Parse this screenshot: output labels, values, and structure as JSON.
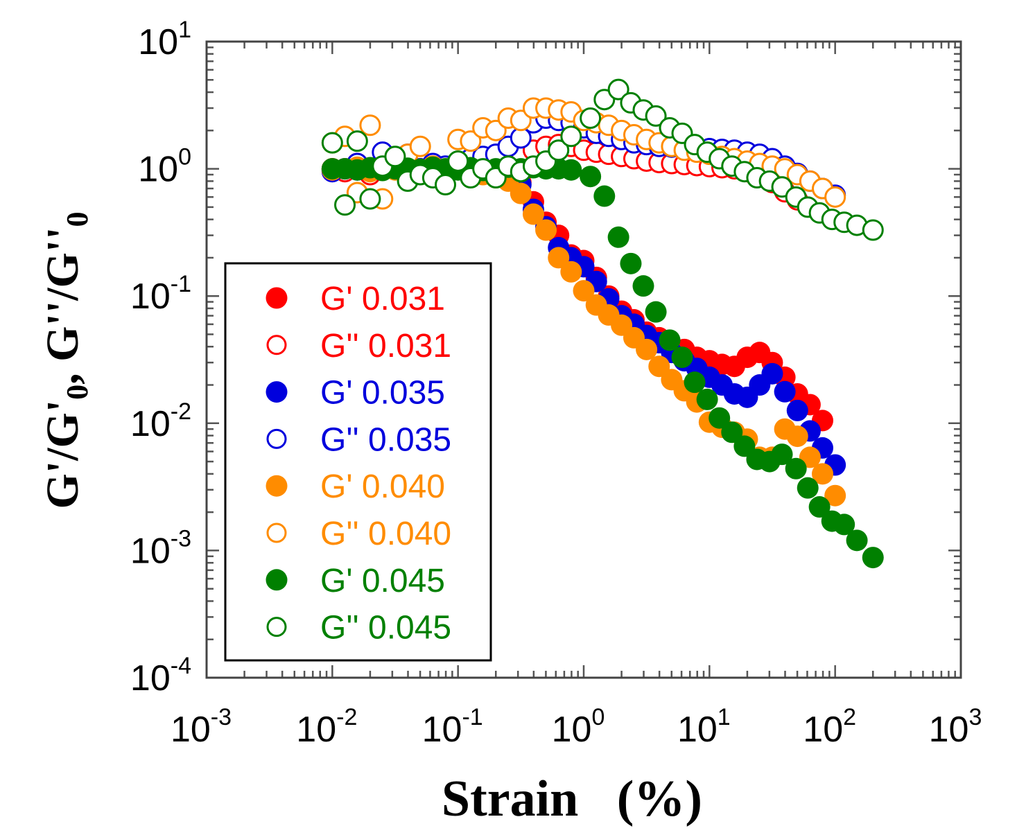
{
  "chart_data": {
    "type": "scatter",
    "xscale": "log",
    "yscale": "log",
    "xlim": [
      0.001,
      1000
    ],
    "ylim": [
      0.0001,
      10
    ],
    "xlabel": "Strain   (%)",
    "ylabel_parts": [
      "G'/G'",
      "0",
      ", G''/G''",
      "0"
    ],
    "tick_base": "10",
    "x_tick_exponents": [
      "-3",
      "-2",
      "-1",
      "0",
      "1",
      "2",
      "3"
    ],
    "y_tick_exponents": [
      "1",
      "0",
      "-1",
      "-2",
      "-3",
      "-4"
    ],
    "legend_placement": "lower-left",
    "grid": false,
    "series": [
      {
        "name": "G' 0.031",
        "color": "#ff0000",
        "filled": true,
        "x": [
          0.01,
          0.0126,
          0.0158,
          0.02,
          0.0251,
          0.0316,
          0.0398,
          0.0501,
          0.0631,
          0.0794,
          0.1,
          0.126,
          0.158,
          0.2,
          0.251,
          0.316,
          0.398,
          0.501,
          0.631,
          0.794,
          1,
          1.26,
          1.58,
          2,
          2.51,
          3.16,
          3.98,
          5.01,
          6.31,
          7.94,
          10,
          12.6,
          15.8,
          20,
          25.1,
          31.6,
          39.8,
          50.1,
          63.1,
          79.4
        ],
        "y": [
          1.0,
          0.98,
          1.02,
          0.97,
          1.0,
          1.01,
          0.99,
          1.0,
          1.02,
          0.98,
          1.0,
          0.99,
          0.97,
          0.95,
          0.85,
          0.78,
          0.55,
          0.38,
          0.3,
          0.21,
          0.19,
          0.14,
          0.1,
          0.076,
          0.065,
          0.052,
          0.047,
          0.04,
          0.038,
          0.033,
          0.031,
          0.029,
          0.028,
          0.033,
          0.036,
          0.03,
          0.023,
          0.017,
          0.014,
          0.0105
        ]
      },
      {
        "name": "G'' 0.031",
        "color": "#ff0000",
        "filled": false,
        "x": [
          0.01,
          0.0126,
          0.0158,
          0.02,
          0.0251,
          0.0316,
          0.0398,
          0.0501,
          0.0631,
          0.0794,
          0.1,
          0.126,
          0.158,
          0.2,
          0.251,
          0.316,
          0.398,
          0.501,
          0.631,
          0.794,
          1,
          1.26,
          1.58,
          2,
          2.51,
          3.16,
          3.98,
          5.01,
          6.31,
          7.94,
          10,
          12.6,
          15.8,
          20,
          25.1,
          31.6,
          39.8,
          50.1
        ],
        "y": [
          1.0,
          0.95,
          1.1,
          0.9,
          1.0,
          1.05,
          0.95,
          1.0,
          1.05,
          0.95,
          1.05,
          1.0,
          1.05,
          1.1,
          1.2,
          1.35,
          1.4,
          1.5,
          1.55,
          1.5,
          1.4,
          1.35,
          1.3,
          1.25,
          1.2,
          1.15,
          1.12,
          1.1,
          1.08,
          1.06,
          1.04,
          1.02,
          1.0,
          0.95,
          0.88,
          0.78,
          0.66,
          0.57
        ]
      },
      {
        "name": "G' 0.035",
        "color": "#0000dd",
        "filled": true,
        "x": [
          0.01,
          0.0126,
          0.0158,
          0.02,
          0.0251,
          0.0316,
          0.0398,
          0.0501,
          0.0631,
          0.0794,
          0.1,
          0.126,
          0.158,
          0.2,
          0.251,
          0.316,
          0.398,
          0.501,
          0.631,
          0.794,
          1,
          1.26,
          1.58,
          2,
          2.51,
          3.16,
          3.98,
          5.01,
          6.31,
          7.94,
          10,
          12.6,
          15.8,
          20,
          25.1,
          31.6,
          39.8,
          50.1,
          63.1,
          79.4,
          100
        ],
        "y": [
          0.97,
          1.0,
          0.98,
          1.0,
          0.99,
          1.0,
          1.01,
          0.98,
          1.0,
          0.99,
          1.0,
          0.98,
          0.96,
          0.93,
          0.85,
          0.75,
          0.48,
          0.35,
          0.24,
          0.2,
          0.17,
          0.13,
          0.095,
          0.07,
          0.06,
          0.049,
          0.043,
          0.036,
          0.031,
          0.027,
          0.023,
          0.02,
          0.017,
          0.016,
          0.02,
          0.0245,
          0.0177,
          0.0126,
          0.0087,
          0.0064,
          0.0047
        ]
      },
      {
        "name": "G'' 0.035",
        "color": "#0000dd",
        "filled": false,
        "x": [
          0.01,
          0.0126,
          0.0158,
          0.02,
          0.0251,
          0.0316,
          0.0398,
          0.0501,
          0.0631,
          0.0794,
          0.1,
          0.126,
          0.158,
          0.2,
          0.251,
          0.316,
          0.398,
          0.501,
          0.631,
          0.794,
          1,
          1.26,
          1.58,
          2,
          2.51,
          3.16,
          3.98,
          5.01,
          6.31,
          7.94,
          10,
          12.6,
          15.8,
          20,
          25.1,
          31.6,
          39.8,
          50.1,
          63.1,
          79.4,
          100
        ],
        "y": [
          0.95,
          1.0,
          1.1,
          1.0,
          1.35,
          1.05,
          1.3,
          1.0,
          1.1,
          1.05,
          1.1,
          1.2,
          1.25,
          1.3,
          1.5,
          1.75,
          2.3,
          2.5,
          2.4,
          2.3,
          2.1,
          1.9,
          1.8,
          1.7,
          1.6,
          1.55,
          1.5,
          1.48,
          1.46,
          1.45,
          1.44,
          1.42,
          1.4,
          1.35,
          1.3,
          1.2,
          1.05,
          0.92,
          0.8,
          0.7,
          0.62
        ]
      },
      {
        "name": "G' 0.040",
        "color": "#ff8c00",
        "filled": true,
        "x": [
          0.01,
          0.0126,
          0.0158,
          0.02,
          0.0251,
          0.0316,
          0.0398,
          0.0501,
          0.0631,
          0.0794,
          0.1,
          0.126,
          0.158,
          0.2,
          0.251,
          0.316,
          0.398,
          0.501,
          0.631,
          0.794,
          1,
          1.26,
          1.58,
          2,
          2.51,
          3.16,
          3.98,
          5.01,
          6.31,
          7.94,
          10,
          12.6,
          15.8,
          20,
          25.1,
          31.6,
          39.8,
          50.1,
          63.1,
          79.4,
          100
        ],
        "y": [
          0.98,
          1.0,
          1.03,
          0.95,
          1.0,
          0.98,
          1.0,
          0.97,
          1.0,
          0.98,
          1.0,
          0.96,
          0.9,
          0.85,
          0.8,
          0.64,
          0.44,
          0.33,
          0.2,
          0.155,
          0.11,
          0.085,
          0.071,
          0.059,
          0.047,
          0.038,
          0.028,
          0.022,
          0.018,
          0.0147,
          0.0102,
          0.0093,
          0.0085,
          0.0075,
          0.0054,
          0.0054,
          0.009,
          0.0079,
          0.0054,
          0.004,
          0.0027
        ]
      },
      {
        "name": "G'' 0.040",
        "color": "#ff8c00",
        "filled": false,
        "x": [
          0.01,
          0.0126,
          0.0158,
          0.02,
          0.0251,
          0.0316,
          0.0398,
          0.0501,
          0.0631,
          0.0794,
          0.1,
          0.126,
          0.158,
          0.2,
          0.251,
          0.316,
          0.398,
          0.501,
          0.631,
          0.794,
          1,
          1.26,
          1.58,
          2,
          2.51,
          3.16,
          3.98,
          5.01,
          6.31,
          7.94,
          10,
          12.6,
          15.8,
          20,
          25.1,
          31.6,
          39.8,
          50.1,
          63.1,
          79.4,
          100
        ],
        "y": [
          1.6,
          1.8,
          0.65,
          2.2,
          0.58,
          1.0,
          1.3,
          1.5,
          1.05,
          1.0,
          1.7,
          1.65,
          2.1,
          2.0,
          2.5,
          2.4,
          3.0,
          3.0,
          2.9,
          2.8,
          2.4,
          2.3,
          2.2,
          2.0,
          1.85,
          1.7,
          1.6,
          1.5,
          1.4,
          1.35,
          1.3,
          1.25,
          1.2,
          1.15,
          1.1,
          1.05,
          1.0,
          0.9,
          0.8,
          0.7,
          0.6
        ]
      },
      {
        "name": "G' 0.045",
        "color": "#008000",
        "filled": true,
        "x": [
          0.01,
          0.0126,
          0.0158,
          0.02,
          0.0251,
          0.0316,
          0.0398,
          0.0501,
          0.0631,
          0.0794,
          0.1,
          0.126,
          0.158,
          0.2,
          0.251,
          0.316,
          0.398,
          0.501,
          0.631,
          0.794,
          1.13,
          1.46,
          1.89,
          2.37,
          2.98,
          3.75,
          4.83,
          6.07,
          7.63,
          9.6,
          12.0,
          15.1,
          19.0,
          23.9,
          30.1,
          37.8,
          48.8,
          60.6,
          75.1,
          94.5,
          118,
          149,
          200
        ],
        "y": [
          1.0,
          1.0,
          0.98,
          1.02,
          0.97,
          1.0,
          1.01,
          0.99,
          1.03,
          1.0,
          0.98,
          1.02,
          0.97,
          1.0,
          1.03,
          1.0,
          1.02,
          1.0,
          1.0,
          0.98,
          0.87,
          0.61,
          0.29,
          0.18,
          0.12,
          0.075,
          0.045,
          0.033,
          0.021,
          0.0154,
          0.011,
          0.0085,
          0.0066,
          0.0052,
          0.005,
          0.0057,
          0.0044,
          0.0031,
          0.0022,
          0.0017,
          0.0016,
          0.0012,
          0.00088
        ]
      },
      {
        "name": "G'' 0.045",
        "color": "#008000",
        "filled": false,
        "x": [
          0.01,
          0.0126,
          0.0158,
          0.02,
          0.0251,
          0.0316,
          0.0398,
          0.0501,
          0.0631,
          0.0794,
          0.1,
          0.126,
          0.158,
          0.2,
          0.251,
          0.316,
          0.398,
          0.501,
          0.631,
          0.794,
          1.13,
          1.46,
          1.89,
          2.37,
          2.98,
          3.75,
          4.83,
          6.07,
          7.63,
          9.6,
          12.0,
          15.1,
          19.0,
          23.9,
          30.1,
          37.8,
          48.8,
          60.6,
          75.1,
          94.5,
          118,
          149,
          200
        ],
        "y": [
          1.6,
          0.52,
          1.65,
          0.58,
          1.05,
          1.25,
          0.8,
          0.9,
          0.85,
          0.75,
          1.15,
          0.85,
          1.0,
          0.85,
          1.05,
          0.95,
          1.05,
          1.15,
          1.4,
          1.8,
          2.5,
          3.5,
          4.2,
          3.3,
          2.9,
          2.6,
          2.1,
          1.9,
          1.55,
          1.35,
          1.2,
          1.05,
          0.95,
          0.85,
          0.8,
          0.72,
          0.6,
          0.5,
          0.45,
          0.4,
          0.38,
          0.36,
          0.33
        ]
      }
    ]
  }
}
